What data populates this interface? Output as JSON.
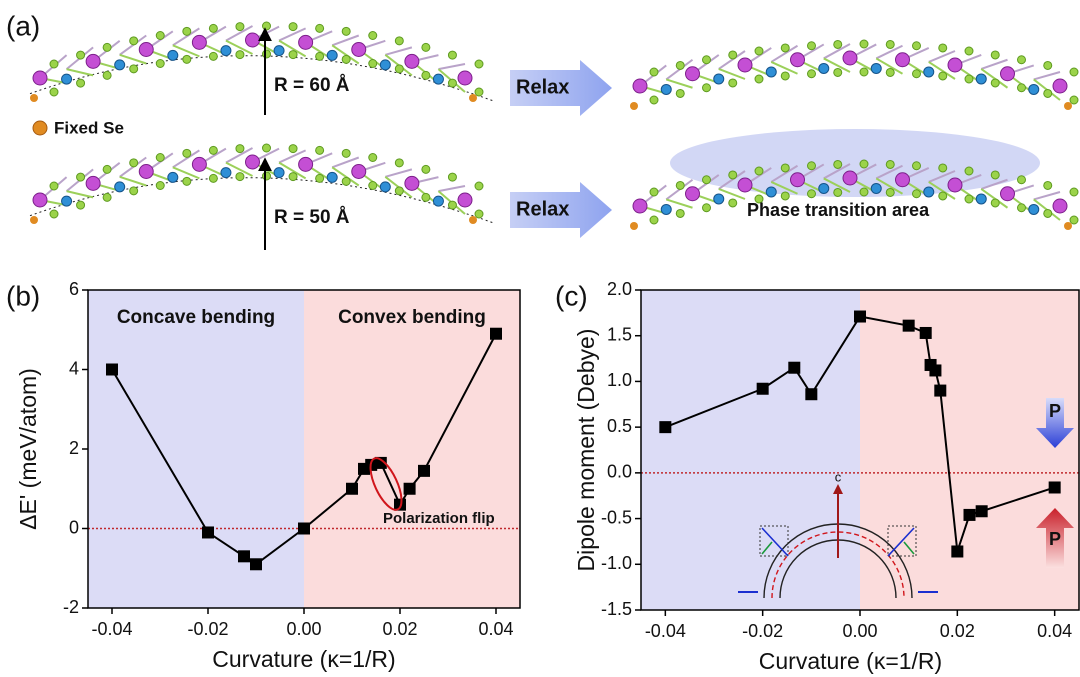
{
  "diagram": {
    "panel_label": "(a)",
    "legend": "Fixed Se",
    "structures": [
      {
        "radius_label": "R = 60 Å",
        "action": "Relax"
      },
      {
        "radius_label": "R = 50 Å",
        "action": "Relax",
        "annotation": "Phase transition area"
      }
    ]
  },
  "chart_data": [
    {
      "type": "line",
      "panel_label": "(b)",
      "x_label": "Curvature (κ=1/R)",
      "y_label": "ΔE' (meV/atom)",
      "x": [
        -0.04,
        -0.02,
        -0.0125,
        -0.01,
        0,
        0.01,
        0.0125,
        0.014,
        0.016,
        0.02,
        0.022,
        0.025,
        0.04
      ],
      "values": [
        4.0,
        -0.1,
        -0.7,
        -0.9,
        0,
        1.0,
        1.5,
        1.6,
        1.65,
        0.6,
        1.0,
        1.45,
        4.9
      ],
      "color": "#000000",
      "xlim": [
        -0.045,
        0.045
      ],
      "ylim": [
        -2,
        6
      ],
      "xticks": [
        -0.04,
        -0.02,
        {
          "value": 0,
          "label": "0.00"
        },
        0.02,
        0.04
      ],
      "yticks": [
        -2,
        0,
        2,
        4,
        6
      ],
      "regions": [
        {
          "label": "Concave bending",
          "from": -0.045,
          "to": 0,
          "color": "#dcdcf6"
        },
        {
          "label": "Convex bending",
          "from": 0,
          "to": 0.045,
          "color": "#fbdcdc"
        }
      ],
      "reference_line": {
        "value": 0,
        "color": "#c0282d"
      },
      "annotation": {
        "text": "Polarization flip",
        "color": "#d0161c"
      }
    },
    {
      "type": "line",
      "panel_label": "(c)",
      "x_label": "Curvature (κ=1/R)",
      "y_label": "Dipole moment (Debye)",
      "x": [
        -0.04,
        -0.02,
        -0.0135,
        -0.01,
        0,
        0.01,
        0.0135,
        0.0145,
        0.0155,
        0.0165,
        0.02,
        0.0225,
        0.025,
        0.04
      ],
      "values": [
        0.5,
        0.92,
        1.15,
        0.86,
        1.71,
        1.61,
        1.53,
        1.18,
        1.12,
        0.9,
        -0.86,
        -0.46,
        -0.42,
        -0.16
      ],
      "color": "#000000",
      "xlim": [
        -0.045,
        0.045
      ],
      "ylim": [
        -1.5,
        2.0
      ],
      "xticks": [
        -0.04,
        -0.02,
        {
          "value": 0,
          "label": "0.00"
        },
        0.02,
        0.04
      ],
      "yticks": [
        {
          "value": -1.5,
          "label": "-1.5"
        },
        {
          "value": -1,
          "label": "-1.0"
        },
        {
          "value": -0.5,
          "label": "-0.5"
        },
        {
          "value": 0,
          "label": "0.0"
        },
        {
          "value": 0.5,
          "label": "0.5"
        },
        {
          "value": 1,
          "label": "1.0"
        },
        {
          "value": 1.5,
          "label": "1.5"
        },
        {
          "value": 2,
          "label": "2.0"
        }
      ],
      "regions": [
        {
          "from": -0.045,
          "to": 0,
          "color": "#dcdcf6"
        },
        {
          "from": 0,
          "to": 0.045,
          "color": "#fbdcdc"
        }
      ],
      "reference_line": {
        "value": 0,
        "color": "#c0282d"
      },
      "annotations": [
        "P",
        "P",
        "c"
      ]
    }
  ]
}
